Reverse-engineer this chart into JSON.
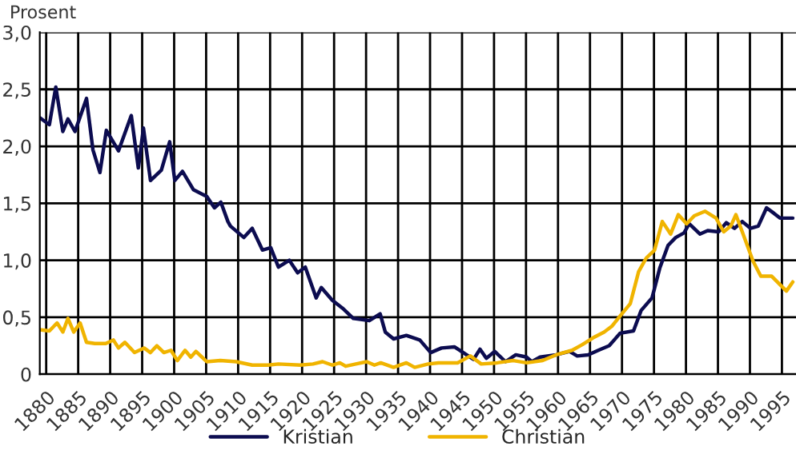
{
  "chart_data": {
    "type": "line",
    "ylabel": "Prosent",
    "xlim": [
      1879,
      1997.2
    ],
    "ylim": [
      0,
      3.0
    ],
    "xticks": [
      1880,
      1885,
      1890,
      1895,
      1900,
      1905,
      1910,
      1915,
      1920,
      1925,
      1930,
      1935,
      1940,
      1945,
      1950,
      1955,
      1960,
      1965,
      1970,
      1975,
      1980,
      1985,
      1990,
      1995
    ],
    "yticks": [
      {
        "value": 0,
        "label": "0"
      },
      {
        "value": 0.5,
        "label": "0,5"
      },
      {
        "value": 1.0,
        "label": "1,0"
      },
      {
        "value": 1.5,
        "label": "1,5"
      },
      {
        "value": 2.0,
        "label": "2,0"
      },
      {
        "value": 2.5,
        "label": "2,5"
      },
      {
        "value": 3.0,
        "label": "3,0"
      }
    ],
    "grid": true,
    "legend": "bottom",
    "marker": "none",
    "line_style": "solid",
    "series": [
      {
        "name": "Kristian",
        "color": "#0c0c50",
        "x": [
          1879,
          1880.5,
          1881.5,
          1882.6,
          1883.4,
          1884.5,
          1886.3,
          1887.3,
          1888.4,
          1889.4,
          1891.3,
          1893.3,
          1894.4,
          1895.2,
          1896.3,
          1898,
          1899.3,
          1900.1,
          1901.3,
          1903,
          1905.1,
          1906.3,
          1907.3,
          1908.4,
          1908.8,
          1910.9,
          1912.2,
          1913.8,
          1915.1,
          1916.3,
          1918,
          1919.3,
          1920.5,
          1922.2,
          1923,
          1924.7,
          1926.3,
          1928,
          1930.5,
          1932.2,
          1933,
          1934.3,
          1936.3,
          1938.4,
          1940.1,
          1941.8,
          1943.8,
          1946.8,
          1947.8,
          1948.8,
          1950.1,
          1951.8,
          1953.4,
          1955.1,
          1955.9,
          1957.2,
          1959.7,
          1961.8,
          1963,
          1964.7,
          1966.3,
          1968,
          1969.7,
          1971.8,
          1973,
          1974.7,
          1975.9,
          1977.2,
          1978.4,
          1979.7,
          1980.5,
          1982.2,
          1983.4,
          1985.1,
          1986.3,
          1987.6,
          1988.8,
          1990.1,
          1991.3,
          1992.6,
          1993.8,
          1994.7,
          1996.7
        ],
        "values": [
          2.25,
          2.19,
          2.52,
          2.13,
          2.24,
          2.13,
          2.42,
          1.97,
          1.77,
          2.14,
          1.96,
          2.27,
          1.81,
          2.16,
          1.7,
          1.79,
          2.04,
          1.7,
          1.78,
          1.62,
          1.56,
          1.46,
          1.51,
          1.34,
          1.3,
          1.2,
          1.28,
          1.09,
          1.11,
          0.94,
          1.0,
          0.89,
          0.94,
          0.67,
          0.76,
          0.65,
          0.58,
          0.49,
          0.47,
          0.53,
          0.37,
          0.31,
          0.34,
          0.3,
          0.19,
          0.23,
          0.24,
          0.13,
          0.22,
          0.14,
          0.2,
          0.11,
          0.17,
          0.15,
          0.11,
          0.15,
          0.17,
          0.2,
          0.16,
          0.17,
          0.21,
          0.25,
          0.36,
          0.38,
          0.56,
          0.67,
          0.93,
          1.13,
          1.2,
          1.24,
          1.32,
          1.23,
          1.26,
          1.25,
          1.33,
          1.28,
          1.34,
          1.28,
          1.3,
          1.46,
          1.41,
          1.37,
          1.37
        ]
      },
      {
        "name": "Christian",
        "color": "#f0b400",
        "x": [
          1879,
          1880.5,
          1881.7,
          1882.6,
          1883.4,
          1884.3,
          1885.3,
          1886.3,
          1887.6,
          1889.3,
          1890.5,
          1891.3,
          1892.3,
          1893.8,
          1895.3,
          1896.3,
          1897.3,
          1898.4,
          1899.5,
          1900.5,
          1901.7,
          1902.6,
          1903.4,
          1905.1,
          1907.2,
          1909.7,
          1912.2,
          1914.7,
          1916.3,
          1919.7,
          1921.7,
          1923.2,
          1924.7,
          1925.9,
          1926.8,
          1928.4,
          1930.1,
          1931.3,
          1932.3,
          1934.3,
          1936.3,
          1937.6,
          1939.7,
          1941.3,
          1944.3,
          1946.3,
          1948,
          1950.5,
          1953,
          1955.1,
          1957.6,
          1959.7,
          1962.2,
          1963.8,
          1965.5,
          1967.2,
          1968.4,
          1969.7,
          1971.3,
          1972.6,
          1973.8,
          1975.1,
          1976.3,
          1977.6,
          1978.8,
          1980.1,
          1981.3,
          1983,
          1984.7,
          1985.9,
          1987,
          1987.8,
          1988.8,
          1990.5,
          1991.7,
          1993.4,
          1995.7,
          1996.7
        ],
        "values": [
          0.39,
          0.38,
          0.45,
          0.37,
          0.49,
          0.37,
          0.45,
          0.28,
          0.27,
          0.27,
          0.3,
          0.23,
          0.28,
          0.19,
          0.23,
          0.19,
          0.25,
          0.19,
          0.21,
          0.12,
          0.21,
          0.15,
          0.2,
          0.11,
          0.12,
          0.11,
          0.08,
          0.08,
          0.09,
          0.08,
          0.09,
          0.11,
          0.08,
          0.1,
          0.07,
          0.09,
          0.11,
          0.08,
          0.1,
          0.06,
          0.1,
          0.06,
          0.09,
          0.1,
          0.1,
          0.16,
          0.09,
          0.1,
          0.12,
          0.1,
          0.12,
          0.17,
          0.21,
          0.26,
          0.32,
          0.37,
          0.42,
          0.51,
          0.62,
          0.9,
          1.02,
          1.09,
          1.34,
          1.23,
          1.4,
          1.32,
          1.39,
          1.43,
          1.37,
          1.25,
          1.3,
          1.4,
          1.25,
          0.99,
          0.86,
          0.86,
          0.73,
          0.81
        ]
      }
    ]
  }
}
